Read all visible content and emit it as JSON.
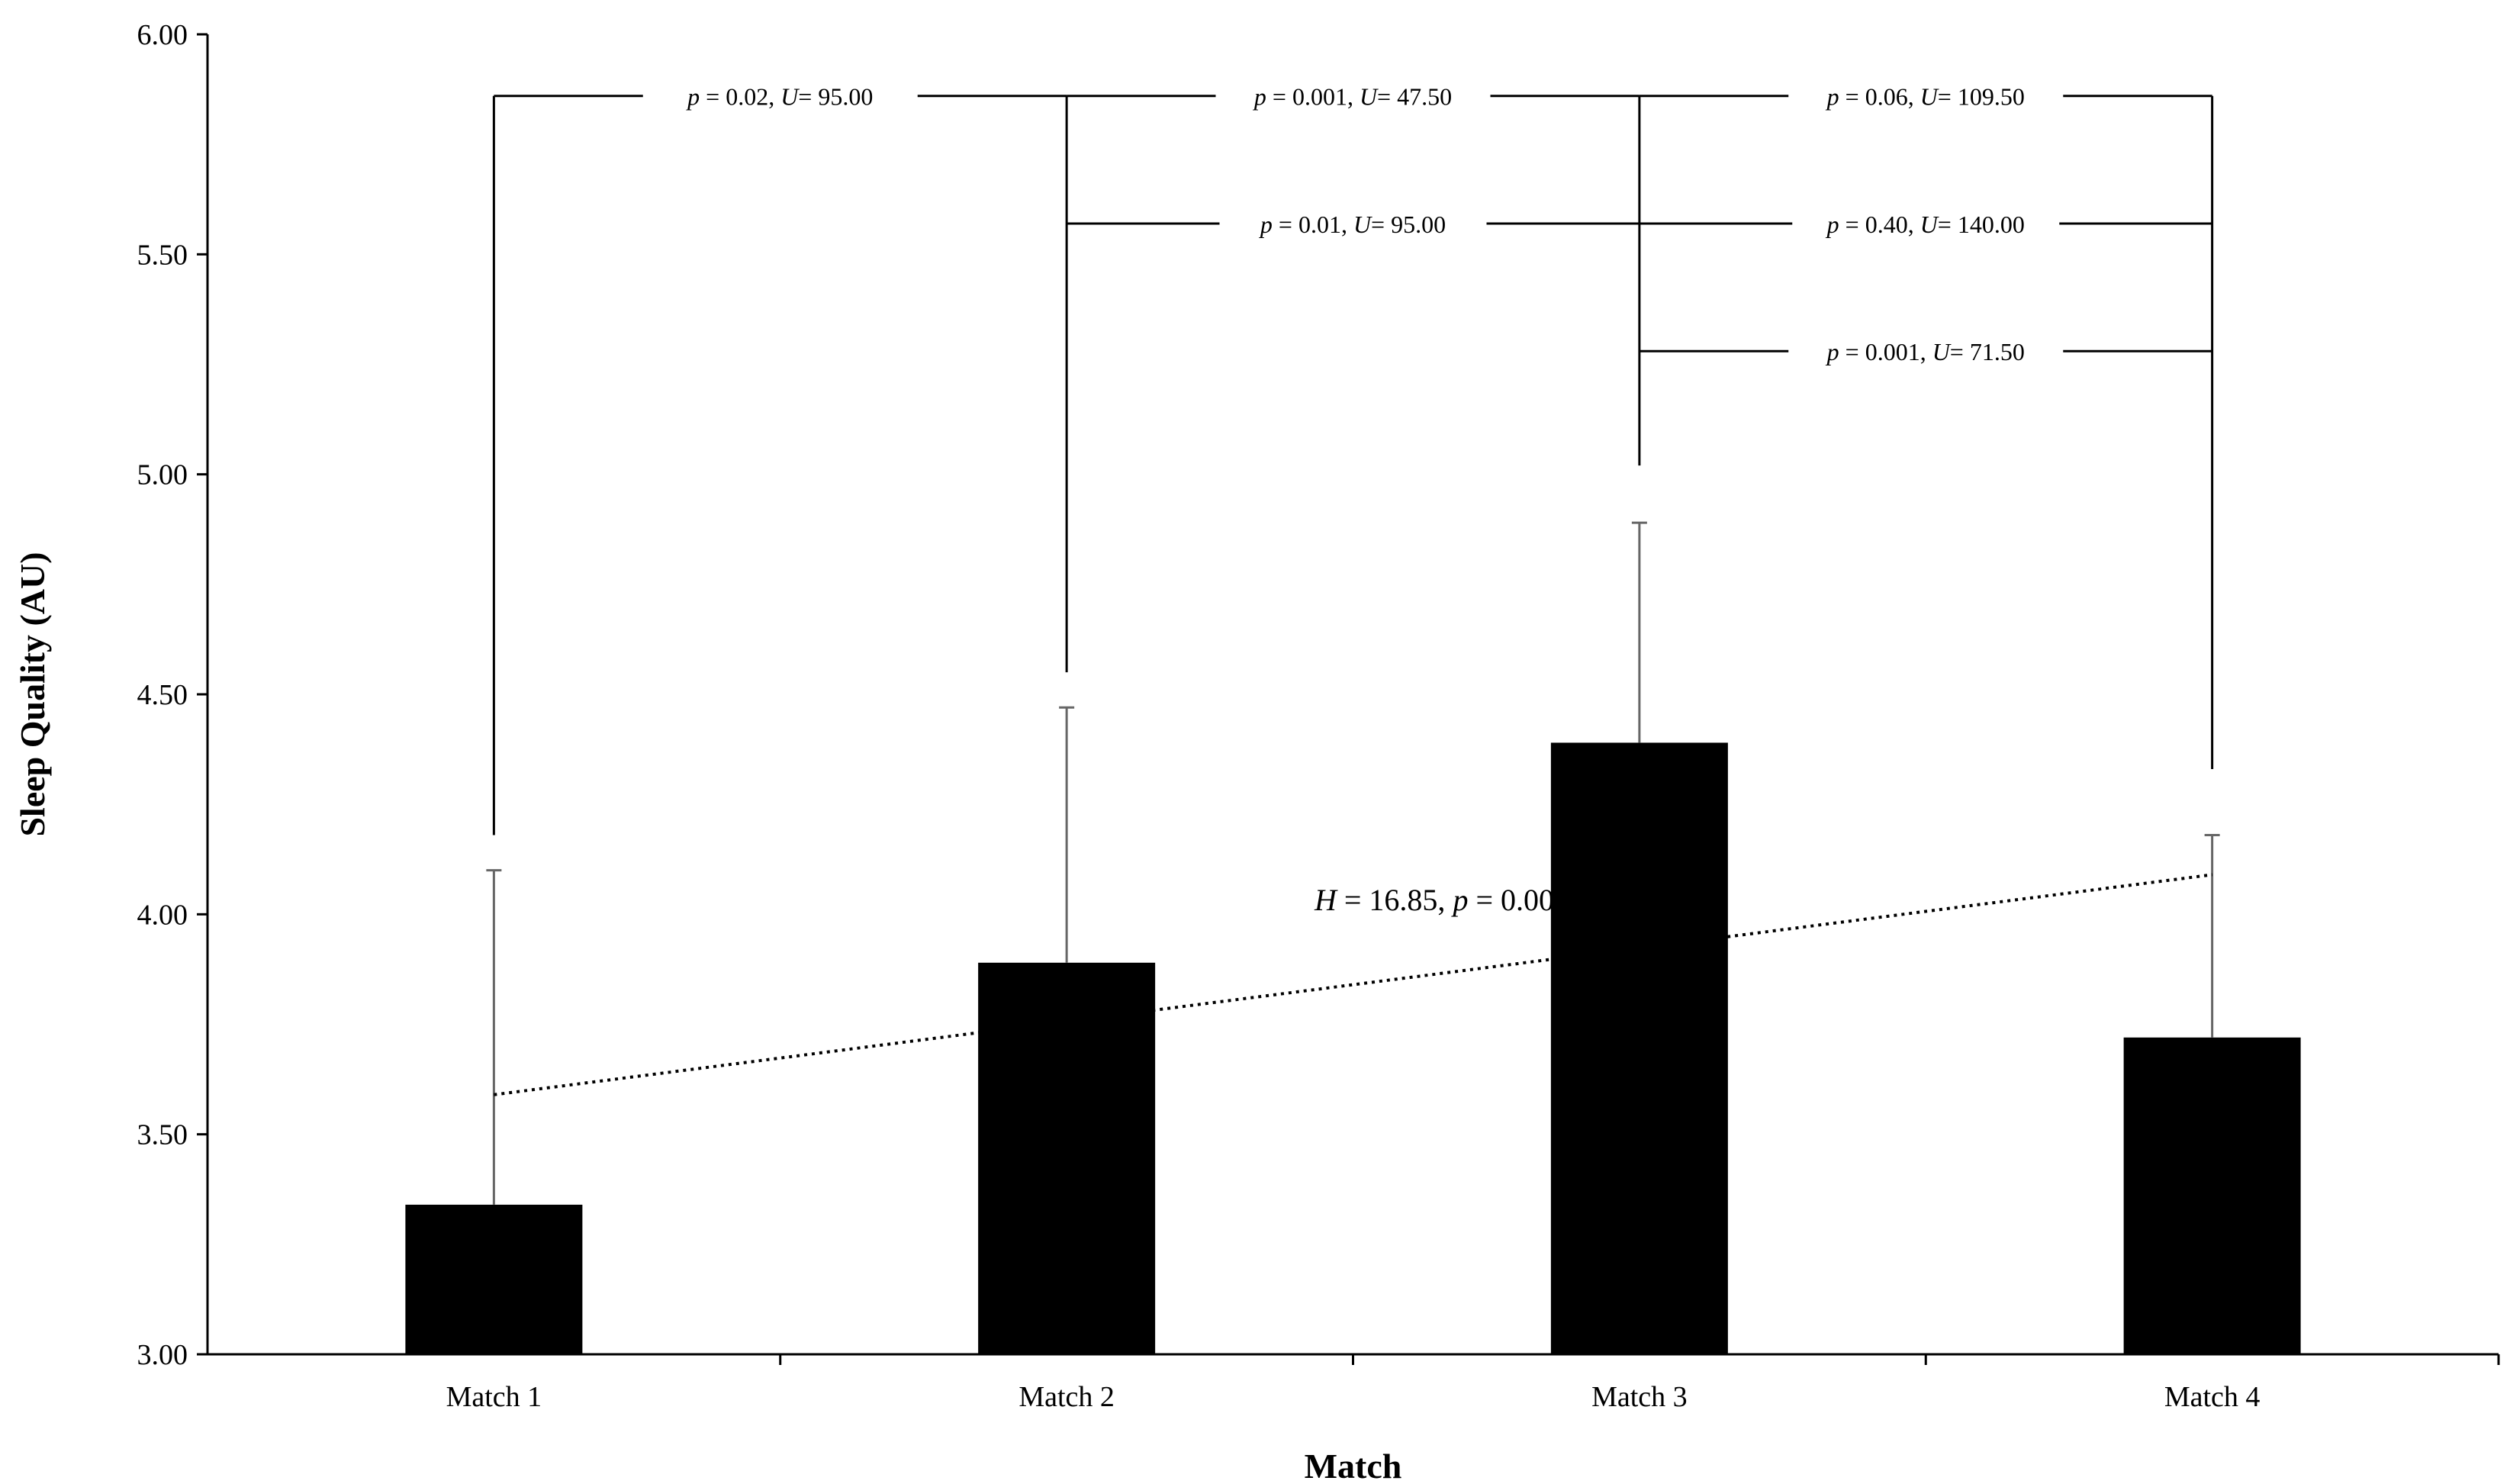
{
  "chart_data": {
    "type": "bar",
    "title": "",
    "xlabel": "Match",
    "ylabel": "Sleep Quality (AU)",
    "ylim": [
      3.0,
      6.0
    ],
    "yticks": [
      "3.00",
      "3.50",
      "4.00",
      "4.50",
      "5.00",
      "5.50",
      "6.00"
    ],
    "ytick_values": [
      3.0,
      3.5,
      4.0,
      4.5,
      5.0,
      5.5,
      6.0
    ],
    "categories": [
      "Match 1",
      "Match 2",
      "Match 3",
      "Match 4"
    ],
    "values": [
      3.34,
      3.89,
      4.39,
      3.72
    ],
    "error_upper": [
      4.1,
      4.47,
      4.89,
      4.18
    ],
    "bar_color": "#000000",
    "grid": false,
    "trendline": {
      "style": "dotted",
      "start": [
        1,
        3.59
      ],
      "end": [
        4,
        4.09
      ],
      "label": {
        "italic": "H",
        "text1": " = 16.85, ",
        "italic2": "p",
        "text2": " = 0.001"
      }
    },
    "comparisons": [
      {
        "from": 1,
        "to": 2,
        "y": 5.86,
        "label": {
          "p": "p",
          "pv": " = 0.02, ",
          "u": "U",
          "uv": "= 95.00"
        }
      },
      {
        "from": 2,
        "to": 3,
        "y": 5.86,
        "label": {
          "p": "p",
          "pv": " = 0.001, ",
          "u": "U",
          "uv": "= 47.50"
        }
      },
      {
        "from": 3,
        "to": 4,
        "y": 5.86,
        "label": {
          "p": "p",
          "pv": " = 0.06, ",
          "u": "U",
          "uv": "= 109.50"
        }
      },
      {
        "from": 2,
        "to": 4,
        "y": 5.57,
        "label": {
          "p": "p",
          "pv": " = 0.01, ",
          "u": "U",
          "uv": "= 95.00"
        },
        "label_between": [
          2,
          3
        ]
      },
      {
        "from": 2,
        "to": 4,
        "y": 5.57,
        "label": {
          "p": "p",
          "pv": " = 0.40, ",
          "u": "U",
          "uv": "= 140.00"
        },
        "label_between": [
          3,
          4
        ],
        "line_shared": true
      },
      {
        "from": 3,
        "to": 4,
        "y": 5.28,
        "label": {
          "p": "p",
          "pv": " = 0.001, ",
          "u": "U",
          "uv": "= 71.50"
        }
      }
    ],
    "bracket_bottoms": [
      4.18,
      4.55,
      5.02,
      4.33
    ]
  }
}
